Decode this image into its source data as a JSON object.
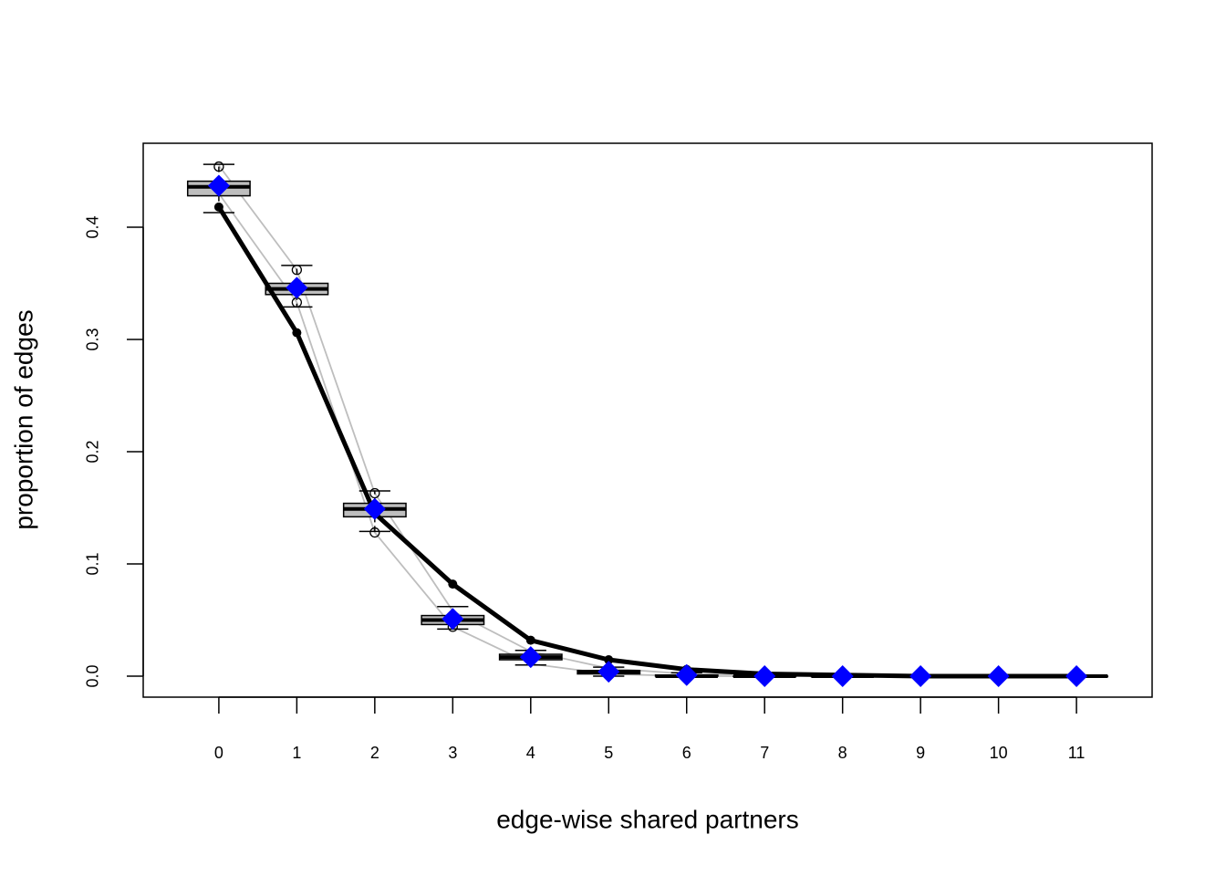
{
  "chart_data": {
    "type": "boxplot",
    "xlabel": "edge-wise shared partners",
    "ylabel": "proportion of edges",
    "x": [
      0,
      1,
      2,
      3,
      4,
      5,
      6,
      7,
      8,
      9,
      10,
      11
    ],
    "xlim": [
      -0.97,
      11.97
    ],
    "ylim": [
      -0.0187,
      0.4748
    ],
    "xticks": [
      0,
      1,
      2,
      3,
      4,
      5,
      6,
      7,
      8,
      9,
      10,
      11
    ],
    "yticks": [
      {
        "value": 0,
        "label": "0.0"
      },
      0.1,
      0.2,
      0.3,
      0.4
    ],
    "boxes": {
      "color": "#bebebe",
      "q1": [
        0.428,
        0.34,
        0.142,
        0.046,
        0.0146,
        0.002,
        0,
        0,
        0,
        0,
        0,
        0
      ],
      "median": [
        0.436,
        0.345,
        0.149,
        0.05,
        0.017,
        0.004,
        0,
        0,
        0,
        0,
        0,
        0
      ],
      "q3": [
        0.441,
        0.35,
        0.154,
        0.054,
        0.0195,
        0.005,
        0.001,
        0,
        0,
        0,
        0,
        0
      ],
      "whisker_low": [
        0.413,
        0.329,
        0.129,
        0.042,
        0.01,
        0,
        0,
        0,
        0,
        0,
        0,
        0
      ],
      "whisker_high": [
        0.456,
        0.366,
        0.165,
        0.062,
        0.023,
        0.008,
        0.003,
        0.001,
        0,
        0,
        0,
        0
      ]
    },
    "outliers": [
      {
        "x": 0,
        "y": 0.454
      },
      {
        "x": 1,
        "y": 0.362
      },
      {
        "x": 1,
        "y": 0.333
      },
      {
        "x": 2,
        "y": 0.163
      },
      {
        "x": 2,
        "y": 0.128
      },
      {
        "x": 3,
        "y": 0.044
      }
    ],
    "range_lines": [
      {
        "color": "#bebebe",
        "values": [
          0.455,
          0.362,
          0.163,
          0.058,
          0.022,
          0.007,
          0.002,
          0.001,
          0,
          0,
          0,
          0
        ]
      },
      {
        "color": "#bebebe",
        "values": [
          0.43,
          0.333,
          0.128,
          0.044,
          0.011,
          0.002,
          0,
          0,
          0,
          0,
          0,
          0
        ]
      }
    ],
    "observed": {
      "color": "#000000",
      "values": [
        0.418,
        0.306,
        0.145,
        0.082,
        0.032,
        0.0146,
        0.006,
        0.002,
        0.001,
        0,
        0,
        0
      ]
    },
    "mean": {
      "color": "#0000ff",
      "values": [
        0.437,
        0.346,
        0.149,
        0.051,
        0.017,
        0.004,
        0.001,
        0,
        0,
        0,
        0,
        0
      ]
    }
  }
}
